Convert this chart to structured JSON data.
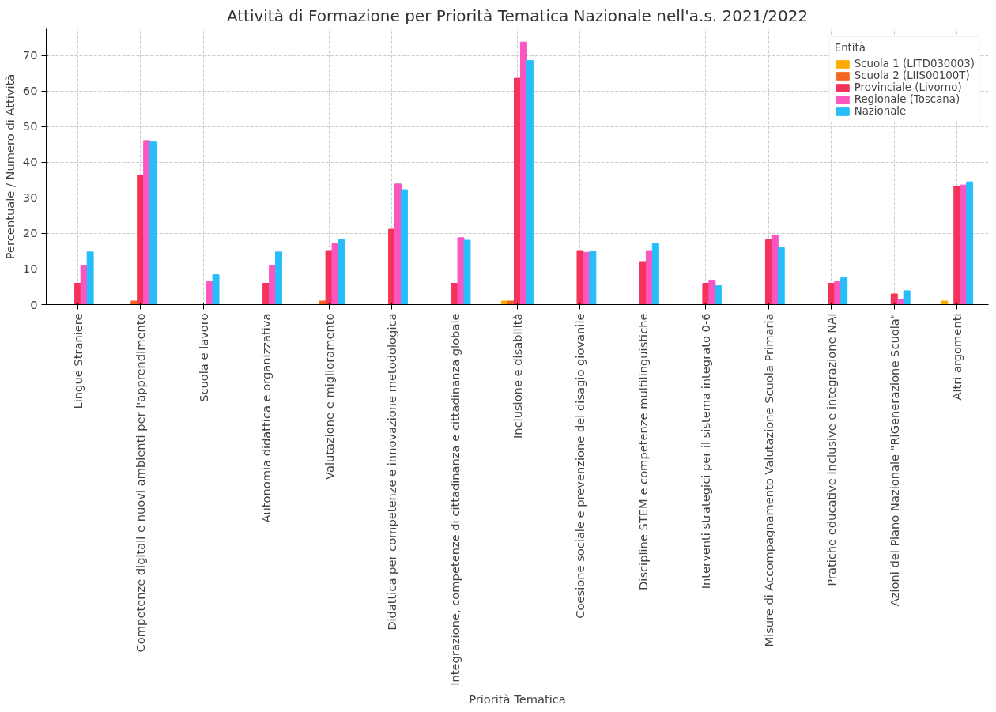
{
  "chart_data": {
    "type": "bar",
    "title": "Attività di Formazione per Priorità Tematica Nazionale nell'a.s. 2021/2022",
    "xlabel": "Priorità Tematica",
    "ylabel": "Percentuale / Numero di Attività",
    "legend_title": "Entità",
    "categories": [
      "Lingue Straniere",
      "Competenze digitali e nuovi ambienti per l'apprendimento",
      "Scuola e lavoro",
      "Autonomia didattica e organizzativa",
      "Valutazione e miglioramento",
      "Didattica per competenze e innovazione metodologica",
      "Integrazione, competenze di cittadinanza e cittadinanza globale",
      "Inclusione e disabilità",
      "Coesione sociale e prevenzione del disagio giovanile",
      "Discipline STEM e competenze multilinguistiche",
      "Interventi strategici per il sistema integrato 0-6",
      "Misure di Accompagnamento Valutazione Scuola Primaria",
      "Pratiche educative inclusive e integrazione NAI",
      "Azioni del Piano Nazionale \"RiGenerazione Scuola\"",
      "Altri argomenti"
    ],
    "series": [
      {
        "name": "Scuola 1 (LITD030003)",
        "color": "#ffaa00",
        "values": [
          0,
          0,
          0,
          0,
          0,
          0,
          0,
          1,
          0,
          0,
          0,
          0,
          0,
          0,
          1
        ]
      },
      {
        "name": "Scuola 2 (LIIS00100T)",
        "color": "#f26522",
        "values": [
          0,
          1,
          0,
          0,
          1,
          0,
          0,
          1,
          0,
          0,
          0,
          0,
          0,
          0,
          0
        ]
      },
      {
        "name": "Provinciale (Livorno)",
        "color": "#f4325a",
        "values": [
          6,
          36.4,
          0,
          6,
          15.2,
          21.2,
          6,
          63.6,
          15.2,
          12.1,
          6,
          18.2,
          6,
          3,
          33.3
        ]
      },
      {
        "name": "Regionale (Toscana)",
        "color": "#fb55c0",
        "values": [
          11.1,
          46.1,
          6.5,
          11.1,
          17.2,
          33.9,
          18.8,
          73.8,
          14.7,
          15.2,
          6.9,
          19.5,
          6.5,
          1.5,
          33.6
        ]
      },
      {
        "name": "Nazionale",
        "color": "#26bdfb",
        "values": [
          14.8,
          45.7,
          8.4,
          14.8,
          18.4,
          32.3,
          18.1,
          68.6,
          15.0,
          17.1,
          5.3,
          16.0,
          7.6,
          3.9,
          34.5
        ]
      }
    ],
    "ylim": [
      0,
      77.5
    ],
    "yticks": [
      0,
      10,
      20,
      30,
      40,
      50,
      60,
      70
    ],
    "grid": true,
    "legend": "top right"
  }
}
